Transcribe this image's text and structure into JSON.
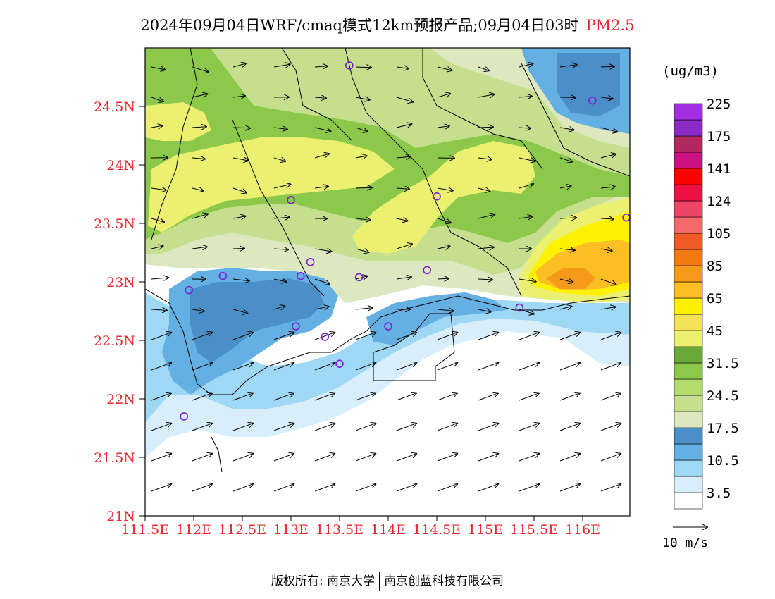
{
  "title": {
    "main": "2024年09月04日WRF/cmaq模式12km预报产品;09月04日03时",
    "pollutant": "PM2.5"
  },
  "colors": {
    "axis_label": "#e8282e",
    "station_marker": "#7b1fd0"
  },
  "map": {
    "lat_ticks": [
      "24.5N",
      "24N",
      "23.5N",
      "23N",
      "22.5N",
      "22N",
      "21.5N",
      "21N"
    ],
    "lon_ticks": [
      "111.5E",
      "112E",
      "112.5E",
      "113E",
      "113.5E",
      "114E",
      "114.5E",
      "115E",
      "115.5E",
      "116E"
    ],
    "stations": [
      {
        "lon": 113.6,
        "lat": 24.85
      },
      {
        "lon": 116.1,
        "lat": 24.55
      },
      {
        "lon": 113.0,
        "lat": 23.7
      },
      {
        "lon": 114.5,
        "lat": 23.73
      },
      {
        "lon": 116.45,
        "lat": 23.55
      },
      {
        "lon": 113.2,
        "lat": 23.17
      },
      {
        "lon": 112.3,
        "lat": 23.05
      },
      {
        "lon": 113.1,
        "lat": 23.05
      },
      {
        "lon": 113.7,
        "lat": 23.04
      },
      {
        "lon": 114.4,
        "lat": 23.1
      },
      {
        "lon": 111.95,
        "lat": 22.93
      },
      {
        "lon": 115.35,
        "lat": 22.78
      },
      {
        "lon": 113.05,
        "lat": 22.62
      },
      {
        "lon": 114.0,
        "lat": 22.62
      },
      {
        "lon": 113.35,
        "lat": 22.53
      },
      {
        "lon": 113.5,
        "lat": 22.3
      },
      {
        "lon": 111.9,
        "lat": 21.85
      }
    ]
  },
  "legend": {
    "unit": "(ug/m3)",
    "colors": [
      "#ffffff",
      "#d8eefa",
      "#9fd8f4",
      "#65b0e2",
      "#4a8fc8",
      "#dde8c0",
      "#c6df8e",
      "#b4dc6c",
      "#8cc84a",
      "#6aa83a",
      "#ecf070",
      "#f4e258",
      "#fff200",
      "#fbbf24",
      "#f59a1a",
      "#f37a10",
      "#ef5c28",
      "#f26a6a",
      "#f04466",
      "#ef1044",
      "#ff0000",
      "#cc1180",
      "#b02a5e",
      "#8a2bc4",
      "#a230e2"
    ],
    "labels": [
      {
        "text": "3.5",
        "index": 1
      },
      {
        "text": "10.5",
        "index": 3
      },
      {
        "text": "17.5",
        "index": 5
      },
      {
        "text": "24.5",
        "index": 7
      },
      {
        "text": "31.5",
        "index": 9
      },
      {
        "text": "45",
        "index": 11
      },
      {
        "text": "65",
        "index": 13
      },
      {
        "text": "85",
        "index": 15
      },
      {
        "text": "105",
        "index": 17
      },
      {
        "text": "124",
        "index": 19
      },
      {
        "text": "141",
        "index": 21
      },
      {
        "text": "175",
        "index": 23
      },
      {
        "text": "225",
        "index": 25
      }
    ],
    "wind_reference": "10 m/s"
  },
  "copyright": {
    "left": "版权所有: 南京大学",
    "right": "南京创蓝科技有限公司"
  }
}
